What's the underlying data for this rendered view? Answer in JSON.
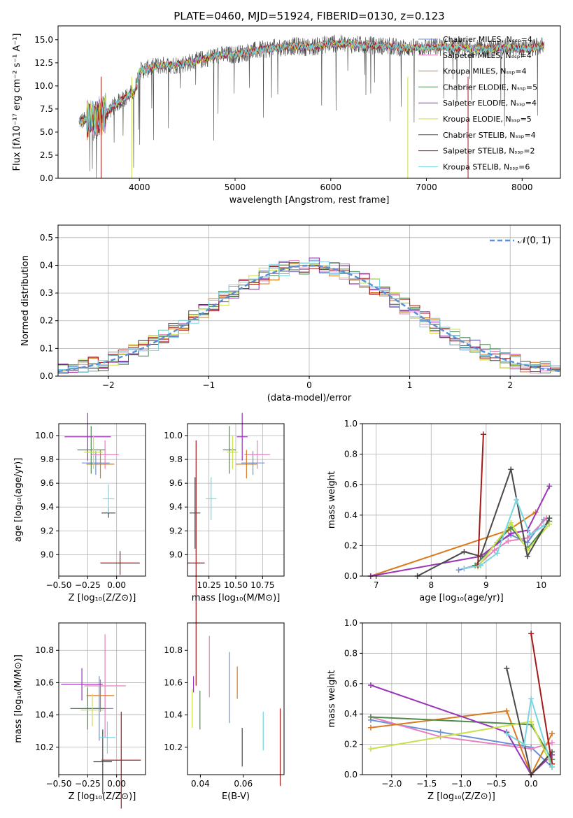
{
  "colors": {
    "Chabrier MILES": "#6a8fd8",
    "Salpeter MILES": "#e87fbe",
    "Kroupa MILES": "#d97a1e",
    "Chabrier ELODIE": "#4e8a4e",
    "Salpeter ELODIE": "#9b35b8",
    "Kroupa ELODIE": "#c9e04a",
    "Chabrier STELIB": "#4a4a4a",
    "Salpeter STELIB": "#a51919",
    "Kroupa STELIB": "#76d6e0"
  },
  "chart_data": [
    {
      "id": "spectrum",
      "type": "line",
      "title": "PLATE=0460, MJD=51924, FIBERID=0130, z=0.123",
      "xlabel": "wavelength [Angstrom, rest frame]",
      "ylabel": "Flux [fλ10⁻¹⁷ erg cm⁻² s⁻¹ A⁻¹]",
      "xlim": [
        3150,
        8400
      ],
      "ylim": [
        0,
        16.5
      ],
      "xticks": [
        4000,
        5000,
        6000,
        7000,
        8000
      ],
      "yticks": [
        0.0,
        2.5,
        5.0,
        7.5,
        10.0,
        12.5,
        15.0
      ],
      "continuum": {
        "x": [
          3400,
          3600,
          3800,
          3950,
          4000,
          4200,
          4400,
          4600,
          4800,
          5000,
          5200,
          5400,
          5600,
          5800,
          6000,
          6200,
          6400,
          6600,
          6800,
          7000,
          7200,
          7400,
          7600,
          7800,
          8000,
          8200
        ],
        "y": [
          6.2,
          6.6,
          8.4,
          9.4,
          11.6,
          12.2,
          12.3,
          12.7,
          13.3,
          13.4,
          13.8,
          14.1,
          14.3,
          14.2,
          14.6,
          14.5,
          14.4,
          14.3,
          14.1,
          14.2,
          14.2,
          14.1,
          14.0,
          14.2,
          14.0,
          14.3
        ]
      },
      "legend_position": "right",
      "series": [
        {
          "name": "Chabrier MILES, Nₛₛₚ=4"
        },
        {
          "name": "Salpeter MILES, Nₛₛₚ=4"
        },
        {
          "name": "Kroupa MILES, Nₛₛₚ=4"
        },
        {
          "name": "Chabrier ELODIE, Nₛₛₚ=5"
        },
        {
          "name": "Salpeter ELODIE, Nₛₛₚ=4"
        },
        {
          "name": "Kroupa ELODIE, Nₛₛₚ=5"
        },
        {
          "name": "Chabrier STELIB, Nₛₛₚ=4"
        },
        {
          "name": "Salpeter STELIB, Nₛₛₚ=2"
        },
        {
          "name": "Kroupa STELIB, Nₛₛₚ=6"
        }
      ]
    },
    {
      "id": "residuals",
      "type": "line",
      "xlabel": "(data-model)/error",
      "ylabel": "Normed distribution",
      "xlim": [
        -2.5,
        2.5
      ],
      "ylim": [
        0,
        0.545
      ],
      "xticks": [
        -2,
        -1,
        0,
        1,
        2
      ],
      "yticks": [
        0.0,
        0.1,
        0.2,
        0.3,
        0.4,
        0.5
      ],
      "grid": true,
      "legend": "𝒩(0, 1)",
      "legend_position": "top-right",
      "bins": {
        "start": -2.5,
        "width": 0.1
      }
    },
    {
      "id": "age-vs-Z",
      "type": "scatter",
      "xlabel": "Z [log₁₀(Z/Z⊙)]",
      "ylabel": "age  [log₁₀(age/yr)]",
      "xlim": [
        -0.5,
        0.25
      ],
      "ylim": [
        8.82,
        10.1
      ],
      "xticks": [
        -0.5,
        -0.25,
        0.0
      ],
      "xticklabels": [
        "−0.50",
        "−0.25",
        "0.00"
      ],
      "yticks": [
        9.0,
        9.2,
        9.4,
        9.6,
        9.8,
        10.0
      ],
      "grid": true,
      "points": [
        {
          "model": "Chabrier MILES",
          "x": -0.18,
          "y": 9.77,
          "xerr": 0.12,
          "yerr": 0.1
        },
        {
          "model": "Salpeter MILES",
          "x": -0.1,
          "y": 9.84,
          "xerr": 0.12,
          "yerr": 0.12
        },
        {
          "model": "Kroupa MILES",
          "x": -0.14,
          "y": 9.76,
          "xerr": 0.12,
          "yerr": 0.12
        },
        {
          "model": "Chabrier ELODIE",
          "x": -0.22,
          "y": 9.88,
          "xerr": 0.12,
          "yerr": 0.2
        },
        {
          "model": "Salpeter ELODIE",
          "x": -0.25,
          "y": 9.99,
          "xerr": 0.2,
          "yerr": 0.2
        },
        {
          "model": "Kroupa ELODIE",
          "x": -0.2,
          "y": 9.86,
          "xerr": 0.08,
          "yerr": 0.14
        },
        {
          "model": "Chabrier STELIB",
          "x": -0.07,
          "y": 9.35,
          "xerr": 0.06,
          "yerr": 0.04
        },
        {
          "model": "Salpeter STELIB",
          "x": 0.03,
          "y": 8.93,
          "xerr": 0.17,
          "yerr": 0.1
        },
        {
          "model": "Kroupa STELIB",
          "x": -0.07,
          "y": 9.47,
          "xerr": 0.05,
          "yerr": 0.12
        }
      ]
    },
    {
      "id": "age-vs-mass",
      "type": "scatter",
      "xlabel": "mass [log₁₀(M/M⊙)]",
      "xlim": [
        10.05,
        10.95
      ],
      "ylim": [
        8.82,
        10.1
      ],
      "xticks": [
        10.25,
        10.5,
        10.75
      ],
      "xticklabels": [
        "10.25",
        "10.50",
        "10.75"
      ],
      "yticks": [
        9.0,
        9.2,
        9.4,
        9.6,
        9.8,
        10.0
      ],
      "grid": true,
      "points": [
        {
          "model": "Chabrier MILES",
          "x": 10.66,
          "y": 9.77,
          "xerr": 0.11,
          "yerr": 0.1
        },
        {
          "model": "Salpeter MILES",
          "x": 10.7,
          "y": 9.84,
          "xerr": 0.12,
          "yerr": 0.12
        },
        {
          "model": "Kroupa MILES",
          "x": 10.6,
          "y": 9.76,
          "xerr": 0.1,
          "yerr": 0.12
        },
        {
          "model": "Chabrier ELODIE",
          "x": 10.44,
          "y": 9.88,
          "xerr": 0.06,
          "yerr": 0.2
        },
        {
          "model": "Salpeter ELODIE",
          "x": 10.56,
          "y": 9.99,
          "xerr": 0.05,
          "yerr": 0.2
        },
        {
          "model": "Kroupa ELODIE",
          "x": 10.47,
          "y": 9.86,
          "xerr": 0.05,
          "yerr": 0.14
        },
        {
          "model": "Chabrier STELIB",
          "x": 10.12,
          "y": 9.35,
          "xerr": 0.05,
          "yerr": 0.3
        },
        {
          "model": "Salpeter STELIB",
          "x": 10.13,
          "y": 8.93,
          "xerr": 0.08,
          "yerr": 1.03
        },
        {
          "model": "Kroupa STELIB",
          "x": 10.27,
          "y": 9.47,
          "xerr": 0.05,
          "yerr": 0.18
        }
      ]
    },
    {
      "id": "weights-vs-age",
      "type": "line",
      "xlabel": "age  [log₁₀(age/yr)]",
      "ylabel": "mass weight",
      "xlim": [
        6.75,
        10.35
      ],
      "ylim": [
        0,
        1.0
      ],
      "xticks": [
        7,
        8,
        9,
        10
      ],
      "yticks": [
        0.0,
        0.2,
        0.4,
        0.6,
        0.8,
        1.0
      ],
      "grid": true,
      "series": [
        {
          "model": "Chabrier MILES",
          "x": [
            8.5,
            8.8,
            9.2,
            9.45,
            9.75,
            10.05
          ],
          "y": [
            0.04,
            0.07,
            0.22,
            0.27,
            0.22,
            0.37
          ]
        },
        {
          "model": "Salpeter MILES",
          "x": [
            8.6,
            8.85,
            9.15,
            9.4,
            9.75,
            10.1
          ],
          "y": [
            0.05,
            0.07,
            0.17,
            0.23,
            0.25,
            0.38
          ]
        },
        {
          "model": "Kroupa MILES",
          "x": [
            6.9,
            9.4,
            9.9
          ],
          "y": [
            0.0,
            0.3,
            0.42
          ]
        },
        {
          "model": "Chabrier ELODIE",
          "x": [
            8.8,
            9.45,
            9.75,
            10.15
          ],
          "y": [
            0.07,
            0.32,
            0.18,
            0.36
          ]
        },
        {
          "model": "Salpeter ELODIE",
          "x": [
            6.9,
            8.9,
            9.45,
            9.75,
            10.15
          ],
          "y": [
            0.0,
            0.13,
            0.28,
            0.3,
            0.59
          ]
        },
        {
          "model": "Kroupa ELODIE",
          "x": [
            8.85,
            9.45,
            9.75,
            10.15
          ],
          "y": [
            0.06,
            0.35,
            0.17,
            0.34
          ]
        },
        {
          "model": "Chabrier STELIB",
          "x": [
            7.75,
            8.6,
            8.9,
            9.45,
            9.75,
            10.15
          ],
          "y": [
            0.0,
            0.16,
            0.13,
            0.7,
            0.13,
            0.38
          ]
        },
        {
          "model": "Salpeter STELIB",
          "x": [
            8.85,
            8.95
          ],
          "y": [
            0.07,
            0.93
          ]
        },
        {
          "model": "Kroupa STELIB",
          "x": [
            8.6,
            8.9,
            9.2,
            9.55,
            9.8,
            10.05
          ],
          "y": [
            0.05,
            0.07,
            0.15,
            0.5,
            0.27,
            0.33
          ]
        }
      ]
    },
    {
      "id": "mass-vs-Z",
      "type": "scatter",
      "xlabel": "Z [log₁₀(Z/Z⊙)]",
      "ylabel": "mass [log₁₀(M/M⊙)]",
      "xlim": [
        -0.5,
        0.25
      ],
      "ylim": [
        10.03,
        10.97
      ],
      "xticks": [
        -0.5,
        -0.25,
        0.0
      ],
      "xticklabels": [
        "−0.50",
        "−0.25",
        "0.00"
      ],
      "yticks": [
        10.2,
        10.4,
        10.6,
        10.8
      ],
      "grid": true,
      "points": [
        {
          "model": "Chabrier MILES",
          "x": -0.15,
          "y": 10.44,
          "xerr": 0.12,
          "yerr": 0.2
        },
        {
          "model": "Salpeter MILES",
          "x": -0.1,
          "y": 10.58,
          "xerr": 0.18,
          "yerr": 0.32
        },
        {
          "model": "Kroupa MILES",
          "x": -0.14,
          "y": 10.52,
          "xerr": 0.12,
          "yerr": 0.1
        },
        {
          "model": "Chabrier ELODIE",
          "x": -0.25,
          "y": 10.44,
          "xerr": 0.15,
          "yerr": 0.13
        },
        {
          "model": "Salpeter ELODIE",
          "x": -0.3,
          "y": 10.59,
          "xerr": 0.18,
          "yerr": 0.1
        },
        {
          "model": "Kroupa ELODIE",
          "x": -0.21,
          "y": 10.43,
          "xerr": 0.1,
          "yerr": 0.1
        },
        {
          "model": "Chabrier STELIB",
          "x": -0.12,
          "y": 10.11,
          "xerr": 0.08,
          "yerr": 0.2
        },
        {
          "model": "Salpeter STELIB",
          "x": 0.04,
          "y": 10.12,
          "xerr": 0.17,
          "yerr": 0.3
        },
        {
          "model": "Kroupa STELIB",
          "x": -0.08,
          "y": 10.26,
          "xerr": 0.07,
          "yerr": 0.1
        }
      ]
    },
    {
      "id": "mass-vs-EBV",
      "type": "scatter",
      "xlabel": "E(B-V)",
      "xlim": [
        0.034,
        0.079
      ],
      "ylim": [
        10.03,
        10.97
      ],
      "xticks": [
        0.04,
        0.06
      ],
      "xticklabels": [
        "0.04",
        "0.06"
      ],
      "yticks": [
        10.2,
        10.4,
        10.6,
        10.8
      ],
      "grid": false,
      "points": [
        {
          "model": "Chabrier MILES",
          "x": 0.0535,
          "y": 10.57,
          "yerr": 0.22
        },
        {
          "model": "Salpeter MILES",
          "x": 0.0442,
          "y": 10.7,
          "yerr": 0.19
        },
        {
          "model": "Kroupa MILES",
          "x": 0.0572,
          "y": 10.6,
          "yerr": 0.1
        },
        {
          "model": "Chabrier ELODIE",
          "x": 0.0398,
          "y": 10.43,
          "yerr": 0.12
        },
        {
          "model": "Salpeter ELODIE",
          "x": 0.0368,
          "y": 10.59,
          "yerr": 0.05
        },
        {
          "model": "Kroupa ELODIE",
          "x": 0.0362,
          "y": 10.44,
          "yerr": 0.12
        },
        {
          "model": "Chabrier STELIB",
          "x": 0.0595,
          "y": 10.2,
          "yerr": 0.12
        },
        {
          "model": "Salpeter STELIB",
          "x": 0.0772,
          "y": 10.2,
          "yerr": 0.24
        },
        {
          "model": "Kroupa STELIB",
          "x": 0.0693,
          "y": 10.3,
          "yerr": 0.12
        }
      ]
    },
    {
      "id": "weights-vs-Z",
      "type": "line",
      "xlabel": "Z [log₁₀(Z/Z⊙)]",
      "ylabel": "mass weight",
      "xlim": [
        -2.42,
        0.42
      ],
      "ylim": [
        0,
        1.0
      ],
      "xticks": [
        -2.0,
        -1.5,
        -1.0,
        -0.5,
        0.0
      ],
      "xticklabels": [
        "−2.0",
        "−1.5",
        "−1.0",
        "−0.5",
        "0.0"
      ],
      "yticks": [
        0.0,
        0.2,
        0.4,
        0.6,
        0.8,
        1.0
      ],
      "grid": true,
      "series": [
        {
          "model": "Chabrier MILES",
          "x": [
            -2.3,
            -1.3,
            0.0,
            0.3
          ],
          "y": [
            0.36,
            0.28,
            0.18,
            0.05
          ]
        },
        {
          "model": "Salpeter MILES",
          "x": [
            -2.3,
            -1.3,
            0.0,
            0.3
          ],
          "y": [
            0.38,
            0.25,
            0.17,
            0.21
          ]
        },
        {
          "model": "Kroupa MILES",
          "x": [
            -2.3,
            -0.35,
            0.0,
            0.3
          ],
          "y": [
            0.31,
            0.42,
            0.0,
            0.27
          ]
        },
        {
          "model": "Chabrier ELODIE",
          "x": [
            -2.3,
            0.0,
            0.3
          ],
          "y": [
            0.38,
            0.33,
            0.1
          ]
        },
        {
          "model": "Salpeter ELODIE",
          "x": [
            -2.3,
            -0.35,
            0.0,
            0.3
          ],
          "y": [
            0.59,
            0.28,
            0.0,
            0.13
          ]
        },
        {
          "model": "Kroupa ELODIE",
          "x": [
            -2.3,
            0.0,
            0.3
          ],
          "y": [
            0.17,
            0.35,
            0.05
          ]
        },
        {
          "model": "Chabrier STELIB",
          "x": [
            -0.35,
            0.0,
            0.3
          ],
          "y": [
            0.7,
            0.0,
            0.15
          ]
        },
        {
          "model": "Salpeter STELIB",
          "x": [
            0.0,
            0.3
          ],
          "y": [
            0.93,
            0.07
          ]
        },
        {
          "model": "Kroupa STELIB",
          "x": [
            -0.35,
            -0.1,
            0.0,
            0.3
          ],
          "y": [
            0.27,
            0.2,
            0.5,
            0.05
          ]
        }
      ]
    }
  ]
}
